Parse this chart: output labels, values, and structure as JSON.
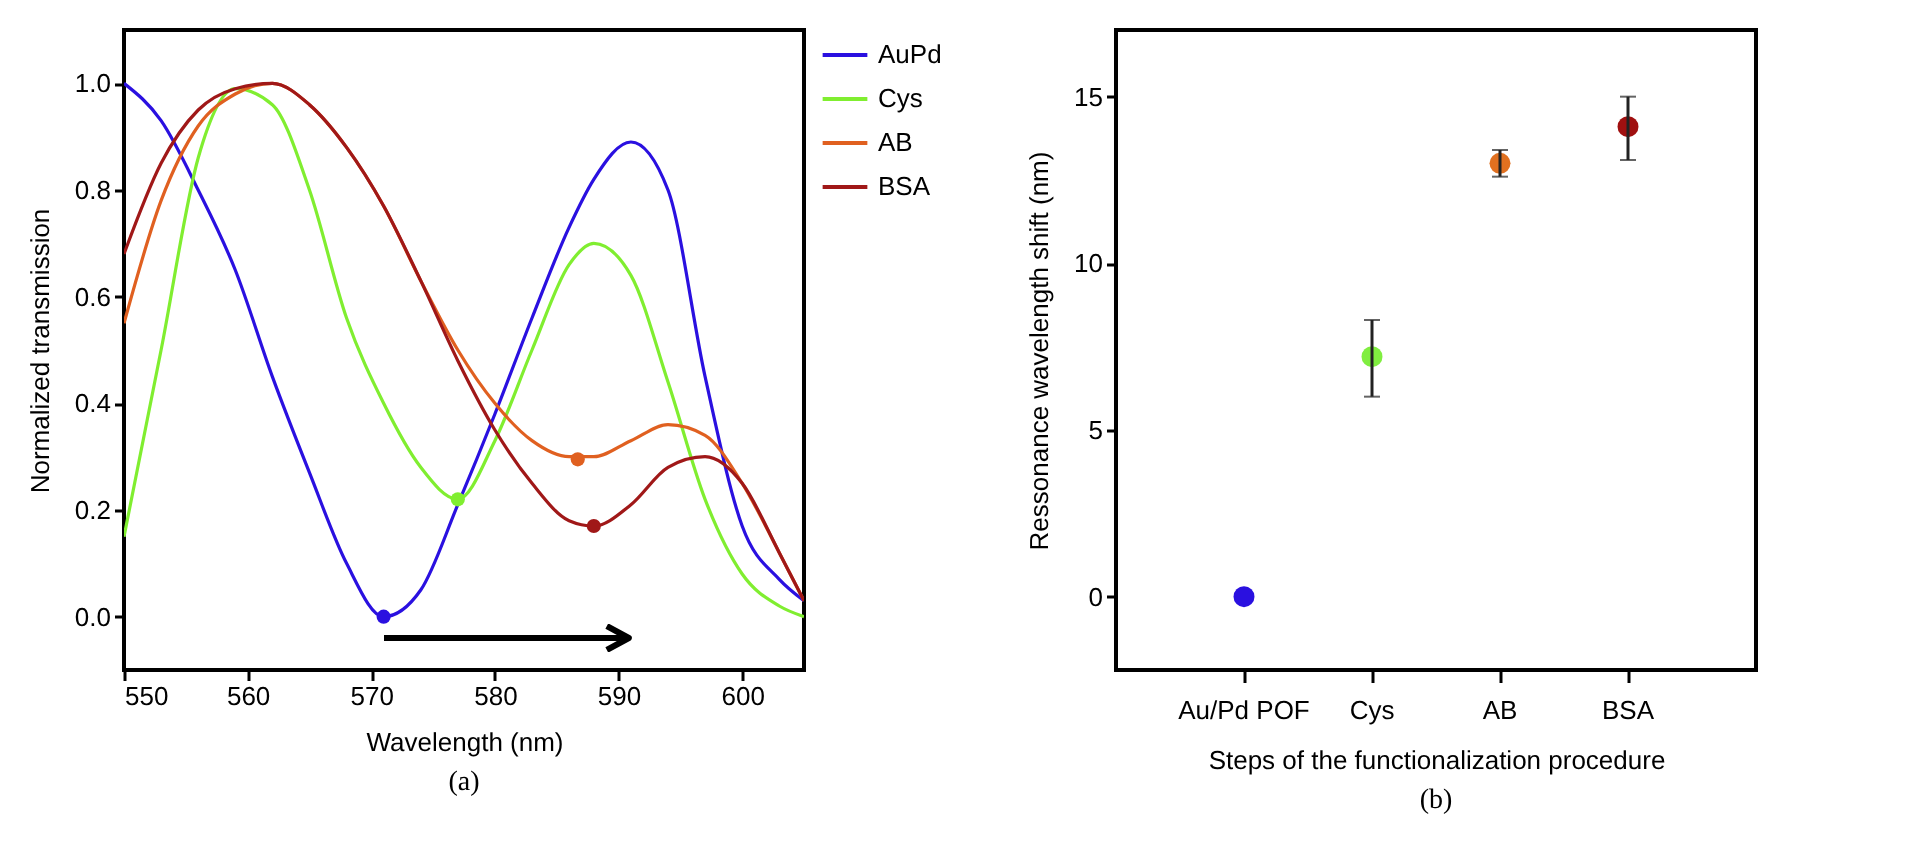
{
  "chart_data": [
    {
      "type": "line",
      "xlabel": "Wavelength (nm)",
      "ylabel": "Normalized transmission",
      "annotations": [
        "(a)"
      ],
      "xlim": [
        550,
        605
      ],
      "ylim": [
        -0.1,
        1.1
      ],
      "xticks": [
        550,
        560,
        570,
        580,
        590,
        600
      ],
      "yticks": [
        {
          "value": 0,
          "label": "0.0"
        },
        0.2,
        0.4,
        0.6,
        0.8,
        {
          "value": 1,
          "label": "1.0"
        }
      ],
      "grid": false,
      "legend": "top right",
      "x": [
        550,
        553,
        556,
        559,
        562,
        565,
        568,
        571,
        574,
        577,
        580,
        583,
        586,
        588,
        591,
        594,
        597,
        600,
        603,
        605
      ],
      "series": [
        {
          "name": "AuPd",
          "color": "#2a10e0",
          "values": [
            1.0,
            0.93,
            0.8,
            0.65,
            0.45,
            0.27,
            0.1,
            0.0,
            0.05,
            0.21,
            0.38,
            0.56,
            0.73,
            0.82,
            0.89,
            0.8,
            0.45,
            0.17,
            0.07,
            0.03
          ]
        },
        {
          "name": "Cys",
          "color": "#80ee30",
          "values": [
            0.15,
            0.5,
            0.86,
            0.99,
            0.96,
            0.8,
            0.56,
            0.4,
            0.28,
            0.22,
            0.33,
            0.5,
            0.66,
            0.7,
            0.64,
            0.44,
            0.22,
            0.08,
            0.02,
            0.0
          ]
        },
        {
          "name": "AB",
          "color": "#e06020",
          "values": [
            0.55,
            0.78,
            0.92,
            0.98,
            1.0,
            0.96,
            0.88,
            0.77,
            0.63,
            0.5,
            0.4,
            0.33,
            0.3,
            0.3,
            0.33,
            0.36,
            0.34,
            0.25,
            0.12,
            0.03
          ]
        },
        {
          "name": "BSA",
          "color": "#a01818",
          "values": [
            0.68,
            0.85,
            0.95,
            0.99,
            1.0,
            0.96,
            0.88,
            0.77,
            0.63,
            0.48,
            0.35,
            0.25,
            0.18,
            0.17,
            0.21,
            0.28,
            0.3,
            0.25,
            0.12,
            0.03
          ]
        },
        {
          "type": "scatter",
          "x": [
            571,
            577,
            586.7,
            588
          ],
          "values": [
            0.0,
            0.22,
            0.295,
            0.17
          ],
          "colors": [
            "#2a10e0",
            "#80ee30",
            "#e06020",
            "#a01818"
          ]
        }
      ]
    },
    {
      "type": "scatter",
      "xlabel": "Steps of the functionalization procedure",
      "ylabel": "Ressonance wavelength shift (nm)",
      "annotations": [
        "(b)"
      ],
      "categories": [
        "Au/Pd POF",
        "Cys",
        "AB",
        "BSA"
      ],
      "values": [
        0,
        7.2,
        13.0,
        14.1
      ],
      "colors": [
        "#2a10e0",
        "#80ee40",
        "#e07020",
        "#a01010"
      ],
      "errors": [
        null,
        [
          6.0,
          8.3
        ],
        [
          12.6,
          13.4
        ],
        [
          13.1,
          15.0
        ]
      ],
      "ylim": [
        -2.2,
        17
      ],
      "yticks": [
        0,
        5,
        10,
        15
      ],
      "grid": false
    }
  ]
}
